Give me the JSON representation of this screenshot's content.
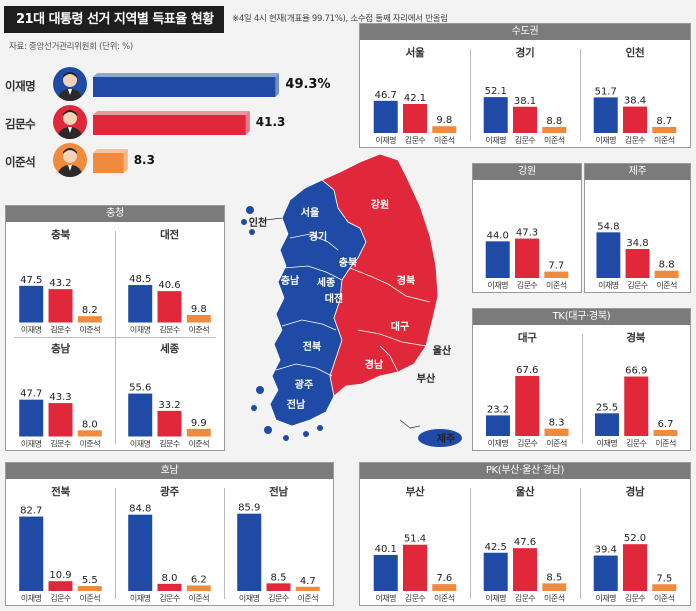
{
  "header": {
    "title": "21대 대통령 선거 지역별 득표율 현황",
    "note": "※4일 4시 현재(개표율 99.71%), 소수점 둘째 자리에서 반올림",
    "source": "자료: 중앙선거관리위원회 (단위: %)"
  },
  "colors": {
    "lee": "#1f4aa6",
    "kim": "#e0283a",
    "lees": "#f08a3c"
  },
  "candidates": [
    "이재명",
    "김문수",
    "이준석"
  ],
  "chart_data": [
    {
      "type": "bar",
      "title": "",
      "categories": [
        "이재명",
        "김문수",
        "이준석"
      ],
      "values": [
        49.3,
        41.3,
        8.3
      ],
      "labels": [
        "49.3%",
        "41.3",
        "8.3"
      ]
    },
    {
      "type": "bar",
      "group": "수도권",
      "regions": [
        {
          "name": "서울",
          "values": [
            46.7,
            42.1,
            9.8
          ]
        },
        {
          "name": "경기",
          "values": [
            52.1,
            38.1,
            8.8
          ]
        },
        {
          "name": "인천",
          "values": [
            51.7,
            38.4,
            8.7
          ]
        }
      ]
    },
    {
      "type": "bar",
      "group": "강원",
      "regions": [
        {
          "name": "",
          "values": [
            44.0,
            47.3,
            7.7
          ]
        }
      ]
    },
    {
      "type": "bar",
      "group": "제주",
      "regions": [
        {
          "name": "",
          "values": [
            54.8,
            34.8,
            8.8
          ]
        }
      ]
    },
    {
      "type": "bar",
      "group": "충청",
      "regions": [
        {
          "name": "충북",
          "values": [
            47.5,
            43.2,
            8.2
          ]
        },
        {
          "name": "대전",
          "values": [
            48.5,
            40.6,
            9.8
          ]
        },
        {
          "name": "충남",
          "values": [
            47.7,
            43.3,
            8.0
          ]
        },
        {
          "name": "세종",
          "values": [
            55.6,
            33.2,
            9.9
          ]
        }
      ]
    },
    {
      "type": "bar",
      "group": "TK(대구·경북)",
      "regions": [
        {
          "name": "대구",
          "values": [
            23.2,
            67.6,
            8.3
          ]
        },
        {
          "name": "경북",
          "values": [
            25.5,
            66.9,
            6.7
          ]
        }
      ]
    },
    {
      "type": "bar",
      "group": "호남",
      "regions": [
        {
          "name": "전북",
          "values": [
            82.7,
            10.9,
            5.5
          ]
        },
        {
          "name": "광주",
          "values": [
            84.8,
            8.0,
            6.2
          ]
        },
        {
          "name": "전남",
          "values": [
            85.9,
            8.5,
            4.7
          ]
        }
      ]
    },
    {
      "type": "bar",
      "group": "PK(부산·울산·경남)",
      "regions": [
        {
          "name": "부산",
          "values": [
            40.1,
            51.4,
            7.6
          ]
        },
        {
          "name": "울산",
          "values": [
            42.5,
            47.6,
            8.5
          ]
        },
        {
          "name": "경남",
          "values": [
            39.4,
            52.0,
            7.5
          ]
        }
      ]
    }
  ],
  "map_labels": {
    "blue": [
      "서울",
      "인천",
      "경기",
      "충북",
      "충남",
      "세종",
      "대전",
      "전북",
      "광주",
      "전남",
      "제주"
    ],
    "red": [
      "강원",
      "경북",
      "대구",
      "울산",
      "경남",
      "부산"
    ]
  }
}
